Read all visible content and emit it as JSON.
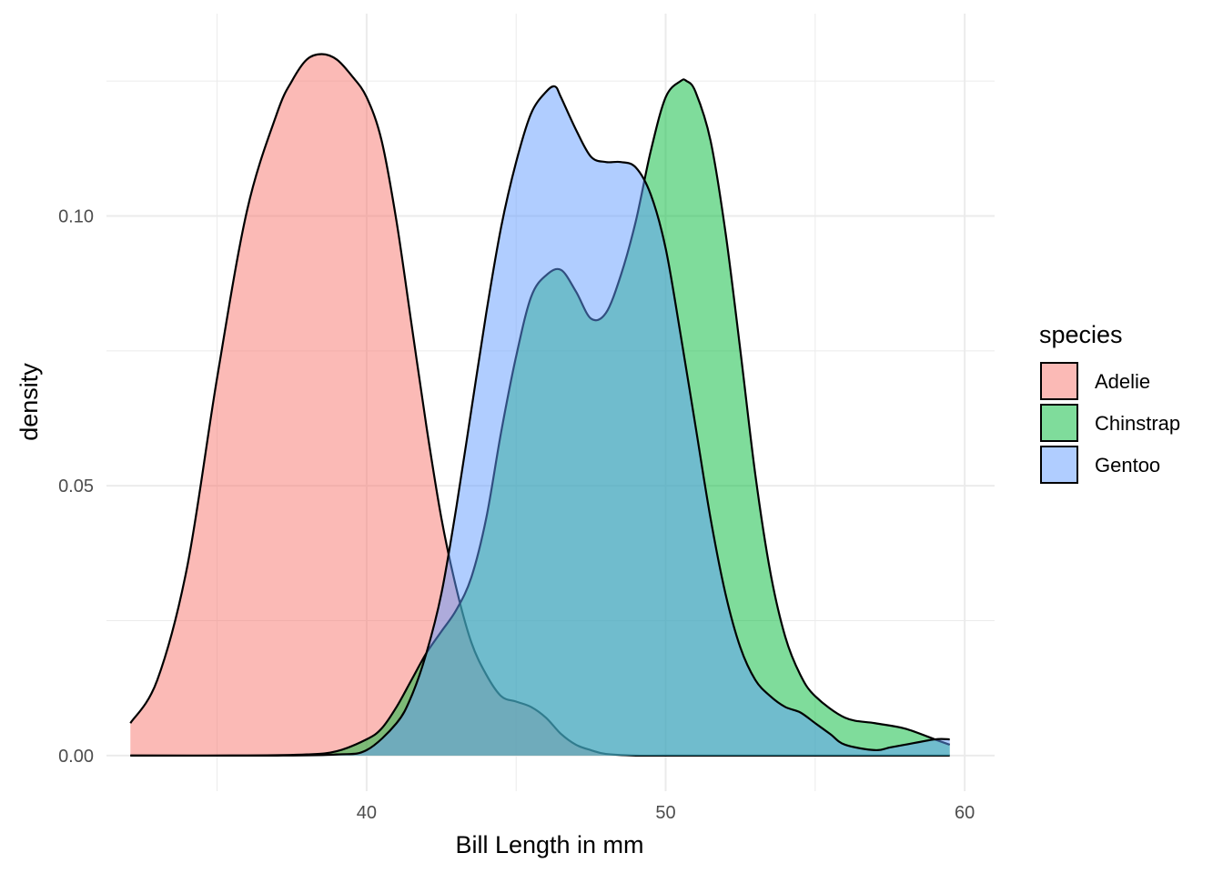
{
  "chart_data": {
    "type": "area",
    "subtype": "density",
    "title": "",
    "xlabel": "Bill Length  in mm",
    "ylabel": "density",
    "xlim": [
      31.3,
      61.0
    ],
    "ylim": [
      -0.0066,
      0.1375
    ],
    "x_ticks": [
      40,
      50,
      60
    ],
    "y_ticks": [
      0.0,
      0.05,
      0.1
    ],
    "x_tick_labels": [
      "40",
      "50",
      "60"
    ],
    "y_tick_labels": [
      "0.00",
      "0.05",
      "0.10"
    ],
    "grid": true,
    "legend": {
      "title": "species",
      "position": "right",
      "entries": [
        "Adelie",
        "Chinstrap",
        "Gentoo"
      ]
    },
    "series": [
      {
        "name": "Adelie",
        "color": "#F8766D",
        "x": [
          32.1,
          33.0,
          34.0,
          35.0,
          36.0,
          37.0,
          37.5,
          38.0,
          38.5,
          39.0,
          39.5,
          40.0,
          40.5,
          41.0,
          41.5,
          42.0,
          42.5,
          43.0,
          43.5,
          44.0,
          44.5,
          45.0,
          45.5,
          46.0,
          46.5,
          47.0,
          47.5,
          48.0,
          49.0,
          50.0,
          52.0,
          55.0,
          59.5
        ],
        "y": [
          0.006,
          0.014,
          0.035,
          0.07,
          0.101,
          0.119,
          0.125,
          0.129,
          0.13,
          0.129,
          0.126,
          0.122,
          0.114,
          0.099,
          0.08,
          0.061,
          0.044,
          0.031,
          0.021,
          0.015,
          0.011,
          0.01,
          0.009,
          0.007,
          0.004,
          0.002,
          0.001,
          0.0003,
          0.0,
          0.0,
          0.0,
          0.0,
          0.0
        ]
      },
      {
        "name": "Chinstrap",
        "color": "#00BA38",
        "x": [
          32.1,
          36.0,
          38.0,
          39.0,
          40.0,
          40.5,
          41.0,
          41.5,
          42.0,
          42.5,
          43.0,
          43.5,
          44.0,
          44.5,
          45.0,
          45.5,
          46.0,
          46.5,
          47.0,
          47.5,
          48.0,
          48.5,
          49.0,
          49.5,
          50.0,
          50.5,
          50.7,
          51.0,
          51.5,
          52.0,
          52.5,
          53.0,
          53.5,
          54.0,
          54.5,
          55.0,
          56.0,
          57.0,
          58.0,
          59.0,
          59.5
        ],
        "y": [
          0.0,
          0.0,
          0.0002,
          0.0008,
          0.003,
          0.005,
          0.009,
          0.014,
          0.019,
          0.023,
          0.027,
          0.033,
          0.044,
          0.06,
          0.074,
          0.085,
          0.089,
          0.09,
          0.086,
          0.081,
          0.082,
          0.089,
          0.099,
          0.112,
          0.122,
          0.125,
          0.125,
          0.123,
          0.114,
          0.097,
          0.075,
          0.052,
          0.034,
          0.022,
          0.015,
          0.011,
          0.007,
          0.006,
          0.005,
          0.003,
          0.002
        ]
      },
      {
        "name": "Gentoo",
        "color": "#619CFF",
        "x": [
          32.1,
          37.0,
          39.0,
          40.0,
          41.0,
          41.5,
          42.0,
          42.5,
          43.0,
          43.5,
          44.0,
          44.5,
          45.0,
          45.5,
          46.0,
          46.3,
          46.5,
          47.0,
          47.5,
          48.0,
          48.5,
          49.0,
          49.5,
          50.0,
          50.5,
          51.0,
          51.5,
          52.0,
          52.5,
          53.0,
          53.5,
          54.0,
          54.5,
          55.0,
          55.5,
          56.0,
          57.0,
          57.5,
          58.0,
          59.0,
          59.5
        ],
        "y": [
          0.0,
          0.0,
          0.0002,
          0.001,
          0.006,
          0.011,
          0.019,
          0.03,
          0.046,
          0.064,
          0.082,
          0.098,
          0.11,
          0.119,
          0.123,
          0.124,
          0.122,
          0.116,
          0.111,
          0.11,
          0.11,
          0.109,
          0.104,
          0.094,
          0.078,
          0.061,
          0.044,
          0.03,
          0.02,
          0.014,
          0.011,
          0.009,
          0.008,
          0.006,
          0.004,
          0.002,
          0.001,
          0.0015,
          0.002,
          0.003,
          0.003
        ]
      }
    ]
  }
}
